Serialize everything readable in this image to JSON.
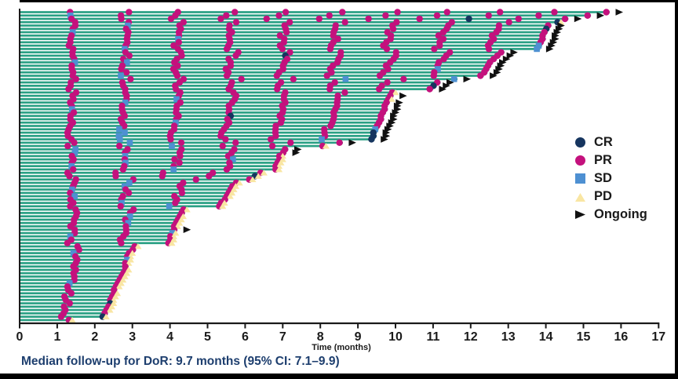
{
  "chart_data": {
    "type": "bar",
    "subtype": "swimmer-plot-duration-of-response",
    "xlabel": "Time (months)",
    "xlim": [
      0,
      17
    ],
    "x_ticks": [
      0,
      1,
      2,
      3,
      4,
      5,
      6,
      7,
      8,
      9,
      10,
      11,
      12,
      13,
      14,
      15,
      16,
      17
    ],
    "grid": false,
    "legend_position": "right",
    "assessment_interval_months": 1.39,
    "colors": {
      "bar": "#2aa084",
      "CR": "#16355f",
      "PR": "#c4117d",
      "SD": "#4e90d2",
      "PD": "#f9e6a3",
      "Ongoing": "#111111",
      "axis": "#1a1a1a"
    },
    "legend": [
      {
        "key": "CR",
        "label": "CR",
        "shape": "circle"
      },
      {
        "key": "PR",
        "label": "PR",
        "shape": "circle"
      },
      {
        "key": "SD",
        "label": "SD",
        "shape": "square"
      },
      {
        "key": "PD",
        "label": "PD",
        "shape": "triangle-up"
      },
      {
        "key": "Ongoing",
        "label": "Ongoing",
        "shape": "arrow-right"
      }
    ],
    "bar_format": [
      "duration_months",
      "response_marks (P=PR, S=SD, C=CR, in assessment order)",
      "end (a=ongoing arrow, y=PD at end, empty=none)"
    ],
    "bars": [
      [
        15.7,
        "PPPPPPPPPPP",
        "a"
      ],
      [
        15.2,
        "SPPPPPPPPPP",
        "a"
      ],
      [
        14.6,
        "PPPPPPPPCPP",
        "a"
      ],
      [
        14.4,
        "PPPPPPPPPC",
        "y"
      ],
      [
        14.15,
        "PSPPPPPPPP",
        "a"
      ],
      [
        14.1,
        "PPPPPPPPPC",
        "a"
      ],
      [
        14.05,
        "SPPPPPPPPP",
        "a"
      ],
      [
        14.0,
        "PPPPPPPPPP",
        "a"
      ],
      [
        14.0,
        "PPSPPPPPPP",
        "a"
      ],
      [
        13.95,
        "PPPPPPPPPP",
        "a"
      ],
      [
        13.9,
        "PPPPPPPPPS",
        "a"
      ],
      [
        13.85,
        "PSPPPPPPPS",
        "a"
      ],
      [
        12.9,
        "PPPPPPPPP",
        "a"
      ],
      [
        12.8,
        "PPPPCPPPP",
        "a"
      ],
      [
        12.7,
        "PPPPPPPPP",
        "a"
      ],
      [
        12.6,
        "SSPPPPPPP",
        "a"
      ],
      [
        12.55,
        "PPPPPPPPP",
        "a"
      ],
      [
        12.5,
        "PPPPPPPSP",
        "a"
      ],
      [
        12.45,
        "PPPPPPPPP",
        "a"
      ],
      [
        12.35,
        "PSPPPPPPP",
        "a"
      ],
      [
        11.65,
        "PPPPPSPS",
        "a"
      ],
      [
        11.2,
        "PPPPPPPP",
        "a"
      ],
      [
        11.1,
        "PPPPPPPC",
        "a"
      ],
      [
        11.0,
        "PPPPPPPP",
        "a"
      ],
      [
        10.0,
        "PPPPPPP",
        "y"
      ],
      [
        9.95,
        "PPPPPPP",
        "a"
      ],
      [
        9.9,
        "PPSPPPP",
        "y"
      ],
      [
        9.85,
        "PSPPPPP",
        "a"
      ],
      [
        9.8,
        "PPPPPPP",
        "a"
      ],
      [
        9.8,
        "SPPPPPP",
        "a"
      ],
      [
        9.75,
        "PPPPPPP",
        "a"
      ],
      [
        9.7,
        "PPPCPPP",
        "a"
      ],
      [
        9.7,
        "PPPPPPP",
        "a"
      ],
      [
        9.65,
        "PPSPPPP",
        "a"
      ],
      [
        9.6,
        "PPPPPPP",
        "a"
      ],
      [
        9.55,
        "PSPPPPS",
        "a"
      ],
      [
        9.5,
        "PSPPPPC",
        "a"
      ],
      [
        9.5,
        "PSPPPPC",
        "a"
      ],
      [
        9.45,
        "PSPPPSC",
        "a"
      ],
      [
        8.6,
        "PSPPPP",
        "a"
      ],
      [
        8.15,
        "PPSPPP",
        "y"
      ],
      [
        7.15,
        "SPPPP",
        "a"
      ],
      [
        7.1,
        "SPPPP",
        "a"
      ],
      [
        7.0,
        "PSPPP",
        "y"
      ],
      [
        7.0,
        "PPPSP",
        "y"
      ],
      [
        6.95,
        "PSPPP",
        "y"
      ],
      [
        6.9,
        "SPPPP",
        "y"
      ],
      [
        6.9,
        "PPSPP",
        "y"
      ],
      [
        6.5,
        "PPPPP",
        "y"
      ],
      [
        6.35,
        "PPPPC",
        "y"
      ],
      [
        6.2,
        "PPPP",
        "y"
      ],
      [
        5.85,
        "PSPP",
        "y"
      ],
      [
        5.75,
        "PSPP",
        "y"
      ],
      [
        5.7,
        "SPPP",
        "y"
      ],
      [
        5.65,
        "PPPP",
        "y"
      ],
      [
        5.6,
        "SPPP",
        "y"
      ],
      [
        5.55,
        "PPPP",
        ""
      ],
      [
        5.45,
        "PSPP",
        "y"
      ],
      [
        5.4,
        "PPSP",
        "y"
      ],
      [
        4.45,
        "PPP",
        "y"
      ],
      [
        4.4,
        "PPP",
        ""
      ],
      [
        4.35,
        "PSP",
        "y"
      ],
      [
        4.3,
        "PPP",
        "y"
      ],
      [
        4.25,
        "PSP",
        "y"
      ],
      [
        4.2,
        "PPP",
        "y"
      ],
      [
        4.2,
        "PPP",
        "a"
      ],
      [
        4.15,
        "PPS",
        "y"
      ],
      [
        4.1,
        "SPP",
        "y"
      ],
      [
        4.1,
        "PPP",
        "y"
      ],
      [
        4.05,
        "PPP",
        "y"
      ],
      [
        3.15,
        "PP",
        "y"
      ],
      [
        3.1,
        "PP",
        ""
      ],
      [
        3.0,
        "SP",
        "y"
      ],
      [
        2.95,
        "PP",
        "y"
      ],
      [
        2.95,
        "PS",
        "y"
      ],
      [
        2.9,
        "PP",
        "y"
      ],
      [
        2.9,
        "PP",
        ""
      ],
      [
        2.9,
        "PP",
        "y"
      ],
      [
        2.85,
        "PP",
        "y"
      ],
      [
        2.8,
        "PP",
        "y"
      ],
      [
        2.75,
        "PP",
        "y"
      ],
      [
        2.7,
        "SP",
        "y"
      ],
      [
        2.65,
        "PP",
        "y"
      ],
      [
        2.6,
        "PP",
        ""
      ],
      [
        2.6,
        "PP",
        "y"
      ],
      [
        2.55,
        "PP",
        "y"
      ],
      [
        2.5,
        "PP",
        "y"
      ],
      [
        2.5,
        "PC",
        "y"
      ],
      [
        2.45,
        "PP",
        "y"
      ],
      [
        2.4,
        "PP",
        "y"
      ],
      [
        2.35,
        "PP",
        ""
      ],
      [
        2.3,
        "PC",
        "y"
      ],
      [
        1.4,
        "P",
        "y"
      ]
    ]
  },
  "axis": {
    "x_title": "Time (months)"
  },
  "footer": {
    "text": "Median follow-up for DoR: 9.7 months (95% CI: 7.1–9.9)"
  }
}
